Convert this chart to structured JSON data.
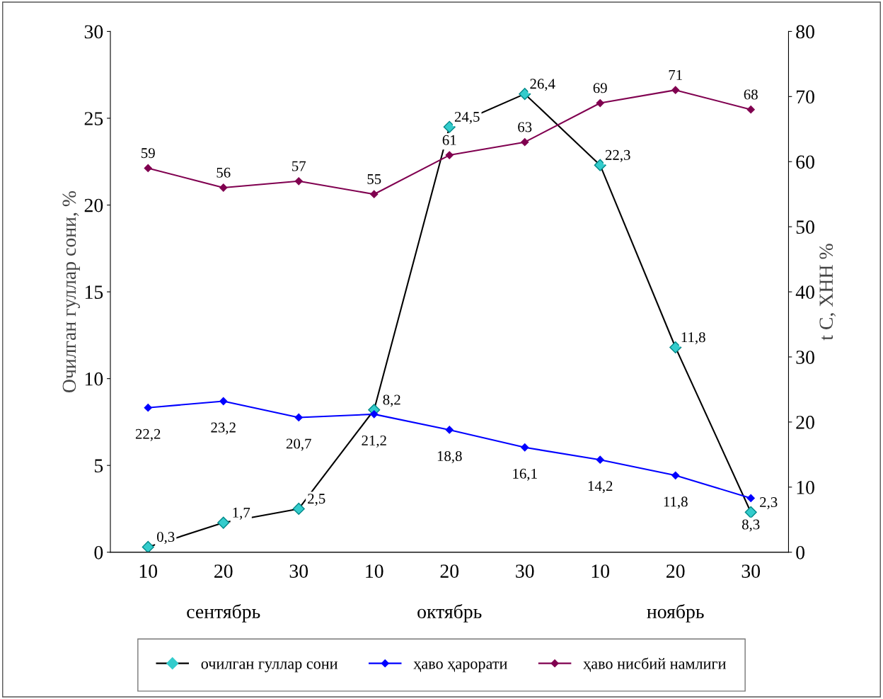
{
  "chart_data": {
    "type": "line",
    "ylabel": "Очилган гуллар сони, %",
    "y2label": "t C, ХНН %",
    "categories": [
      "10",
      "20",
      "30",
      "10",
      "20",
      "30",
      "10",
      "20",
      "30"
    ],
    "annotations": [
      "сентябрь",
      "октябрь",
      "ноябрь"
    ],
    "ylim": [
      0,
      30
    ],
    "yticks": [
      0,
      5,
      10,
      15,
      20,
      25,
      30
    ],
    "y2lim": [
      0,
      80
    ],
    "y2ticks": [
      0,
      10,
      20,
      30,
      40,
      50,
      60,
      70,
      80
    ],
    "marker": "diamond",
    "grid": false,
    "legend": "bottom",
    "series": [
      {
        "name": "очилган гуллар сони",
        "color": "#33cccc",
        "values": [
          0.3,
          1.7,
          2.5,
          8.2,
          24.5,
          26.4,
          22.3,
          11.8,
          2.3
        ],
        "value_labels": [
          "0,3",
          "1,7",
          "2,5",
          "8,2",
          "24,5",
          "26,4",
          "22,3",
          "11,8",
          "2,3"
        ]
      },
      {
        "name": "ҳаво ҳарорати",
        "color": "#0000ff",
        "axis": "y2",
        "values": [
          22.2,
          23.2,
          20.7,
          21.2,
          18.8,
          16.1,
          14.2,
          11.8,
          8.3
        ],
        "value_labels": [
          "22,2",
          "23,2",
          "20,7",
          "21,2",
          "18,8",
          "16,1",
          "14,2",
          "11,8",
          "8,3"
        ]
      },
      {
        "name": "ҳаво нисбий намлиги",
        "color": "#800050",
        "axis": "y2",
        "values": [
          59,
          56,
          57,
          55,
          61,
          63,
          69,
          71,
          68
        ],
        "value_labels": [
          "59",
          "56",
          "57",
          "55",
          "61",
          "63",
          "69",
          "71",
          "68"
        ]
      }
    ]
  }
}
